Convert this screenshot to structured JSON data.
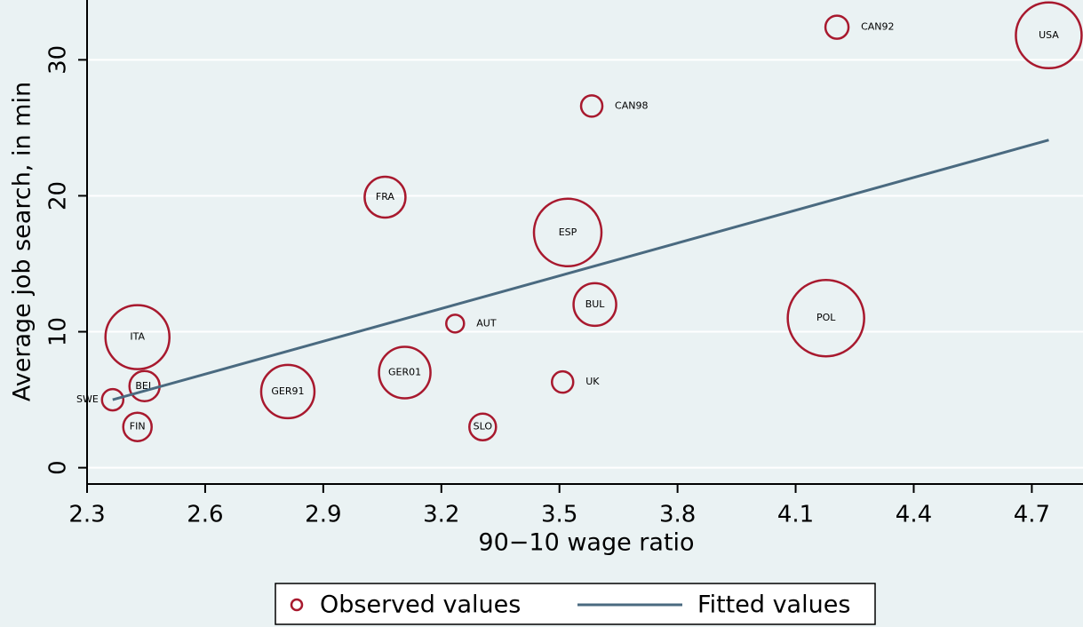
{
  "chart_data": {
    "type": "scatter",
    "xlabel": "90−10 wage ratio",
    "ylabel": "Average job search, in min",
    "xlim": [
      2.3,
      4.83
    ],
    "ylim": [
      -1.2,
      34.4
    ],
    "xticks": [
      2.3,
      2.6,
      2.9,
      3.2,
      3.5,
      3.8,
      4.1,
      4.4,
      4.7
    ],
    "yticks": [
      0,
      10,
      20,
      30
    ],
    "grid": true,
    "series": [
      {
        "name": "Observed values",
        "color": "#a8192e",
        "marker": "circle",
        "labels": [
          "SWE",
          "FIN",
          "BEL",
          "ITA",
          "GER91",
          "FRA",
          "GER01",
          "AUT",
          "SLO",
          "UK",
          "ESP",
          "CAN98",
          "BUL",
          "POL",
          "CAN92",
          "USA"
        ],
        "x": [
          2.365,
          2.428,
          2.446,
          2.428,
          2.81,
          3.057,
          3.107,
          3.235,
          3.305,
          3.508,
          3.521,
          3.582,
          3.59,
          4.177,
          4.205,
          4.743
        ],
        "values": [
          5.0,
          3.0,
          6.0,
          9.6,
          5.6,
          19.9,
          7.0,
          10.6,
          3.0,
          6.3,
          17.3,
          26.6,
          12.0,
          11.0,
          32.4,
          31.8
        ],
        "sizes": [
          12,
          16,
          17,
          36,
          30,
          23,
          29,
          10,
          15,
          12,
          38,
          12,
          24,
          43,
          13,
          37
        ]
      },
      {
        "name": "Fitted values",
        "color": "#4a6a80",
        "type": "line",
        "x": [
          2.365,
          4.743
        ],
        "values": [
          5.0,
          24.1
        ]
      }
    ]
  }
}
